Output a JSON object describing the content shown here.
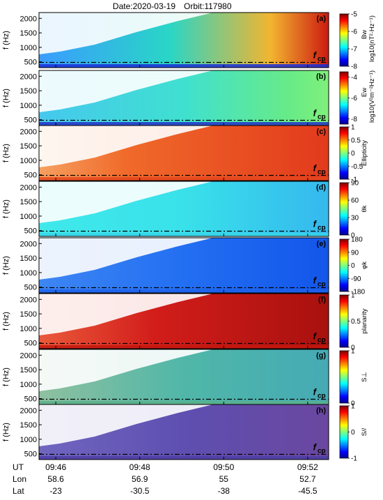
{
  "figure": {
    "title_date": "Date:2020-03-19",
    "title_orbit": "Orbit:117980"
  },
  "chart_data": {
    "type": "heatmap",
    "xaxis": {
      "rows": [
        {
          "label": "UT",
          "values": [
            "09:46",
            "09:48",
            "09:50",
            "09:52"
          ]
        },
        {
          "label": "Lon",
          "values": [
            "58.6",
            "56.9",
            "55",
            "52.7"
          ]
        },
        {
          "label": "Lat",
          "values": [
            "-23",
            "-30.5",
            "-38",
            "-45.5"
          ]
        }
      ],
      "ut_minutes": [
        46,
        48,
        50,
        52
      ],
      "range_minutes": [
        45.6,
        52.5
      ]
    },
    "ylabel": "f (Hz)",
    "ylim": [
      300,
      2200
    ],
    "yticks": [
      500,
      1000,
      1500,
      2000
    ],
    "fcp_hz": 480,
    "fcp_label": {
      "main": "f",
      "sub": "cp"
    },
    "panels": [
      {
        "tag": "(a)",
        "cbar": {
          "label_top": "Bw",
          "label_bottom": "log10(nT²·Hz⁻¹)",
          "ticks": [
            "-5",
            "-6",
            "-7",
            "-8"
          ],
          "tick_values": [
            -5,
            -6,
            -7,
            -8
          ],
          "range": [
            -8,
            -5
          ],
          "scale": "jet"
        }
      },
      {
        "tag": "(b)",
        "cbar": {
          "label_top": "Ew",
          "label_bottom": "log10(V²m⁻²Hz⁻¹)",
          "ticks": [
            "-4",
            "-6",
            "-8"
          ],
          "tick_values": [
            -4,
            -6,
            -8
          ],
          "range": [
            -8.5,
            -3.5
          ],
          "scale": "jet"
        }
      },
      {
        "tag": "(c)",
        "cbar": {
          "label_top": "Ellipticity",
          "label_bottom": "",
          "ticks": [
            "1",
            "0.5",
            "0",
            "-0.5",
            "-1"
          ],
          "tick_values": [
            1,
            0.5,
            0,
            -0.5,
            -1
          ],
          "range": [
            -1,
            1
          ],
          "scale": "jet"
        }
      },
      {
        "tag": "(d)",
        "cbar": {
          "label_top": "θk",
          "label_bottom": "",
          "ticks": [
            "90",
            "60",
            "30",
            "0"
          ],
          "tick_values": [
            90,
            60,
            30,
            0
          ],
          "range": [
            0,
            90
          ],
          "scale": "jet"
        }
      },
      {
        "tag": "(e)",
        "cbar": {
          "label_top": "φk",
          "label_bottom": "",
          "ticks": [
            "180",
            "90",
            "0",
            "-90",
            "-180"
          ],
          "tick_values": [
            180,
            90,
            0,
            -90,
            -180
          ],
          "range": [
            -180,
            180
          ],
          "scale": "jet"
        }
      },
      {
        "tag": "(f)",
        "cbar": {
          "label_top": "planarity",
          "label_bottom": "",
          "ticks": [
            "1",
            "0.5",
            "0"
          ],
          "tick_values": [
            1,
            0.5,
            0
          ],
          "range": [
            0,
            1
          ],
          "scale": "jet"
        }
      },
      {
        "tag": "(g)",
        "cbar": {
          "label_top": "S⊥",
          "label_bottom": "",
          "ticks": [
            "1",
            "0"
          ],
          "tick_values": [
            1,
            0
          ],
          "range": [
            0,
            1
          ],
          "scale": "jet"
        }
      },
      {
        "tag": "(h)",
        "cbar": {
          "label_top": "S//",
          "label_bottom": "",
          "ticks": [
            "1",
            "0",
            "-1"
          ],
          "tick_values": [
            1,
            0,
            -1
          ],
          "range": [
            -1,
            1
          ],
          "scale": "jet"
        }
      }
    ]
  }
}
